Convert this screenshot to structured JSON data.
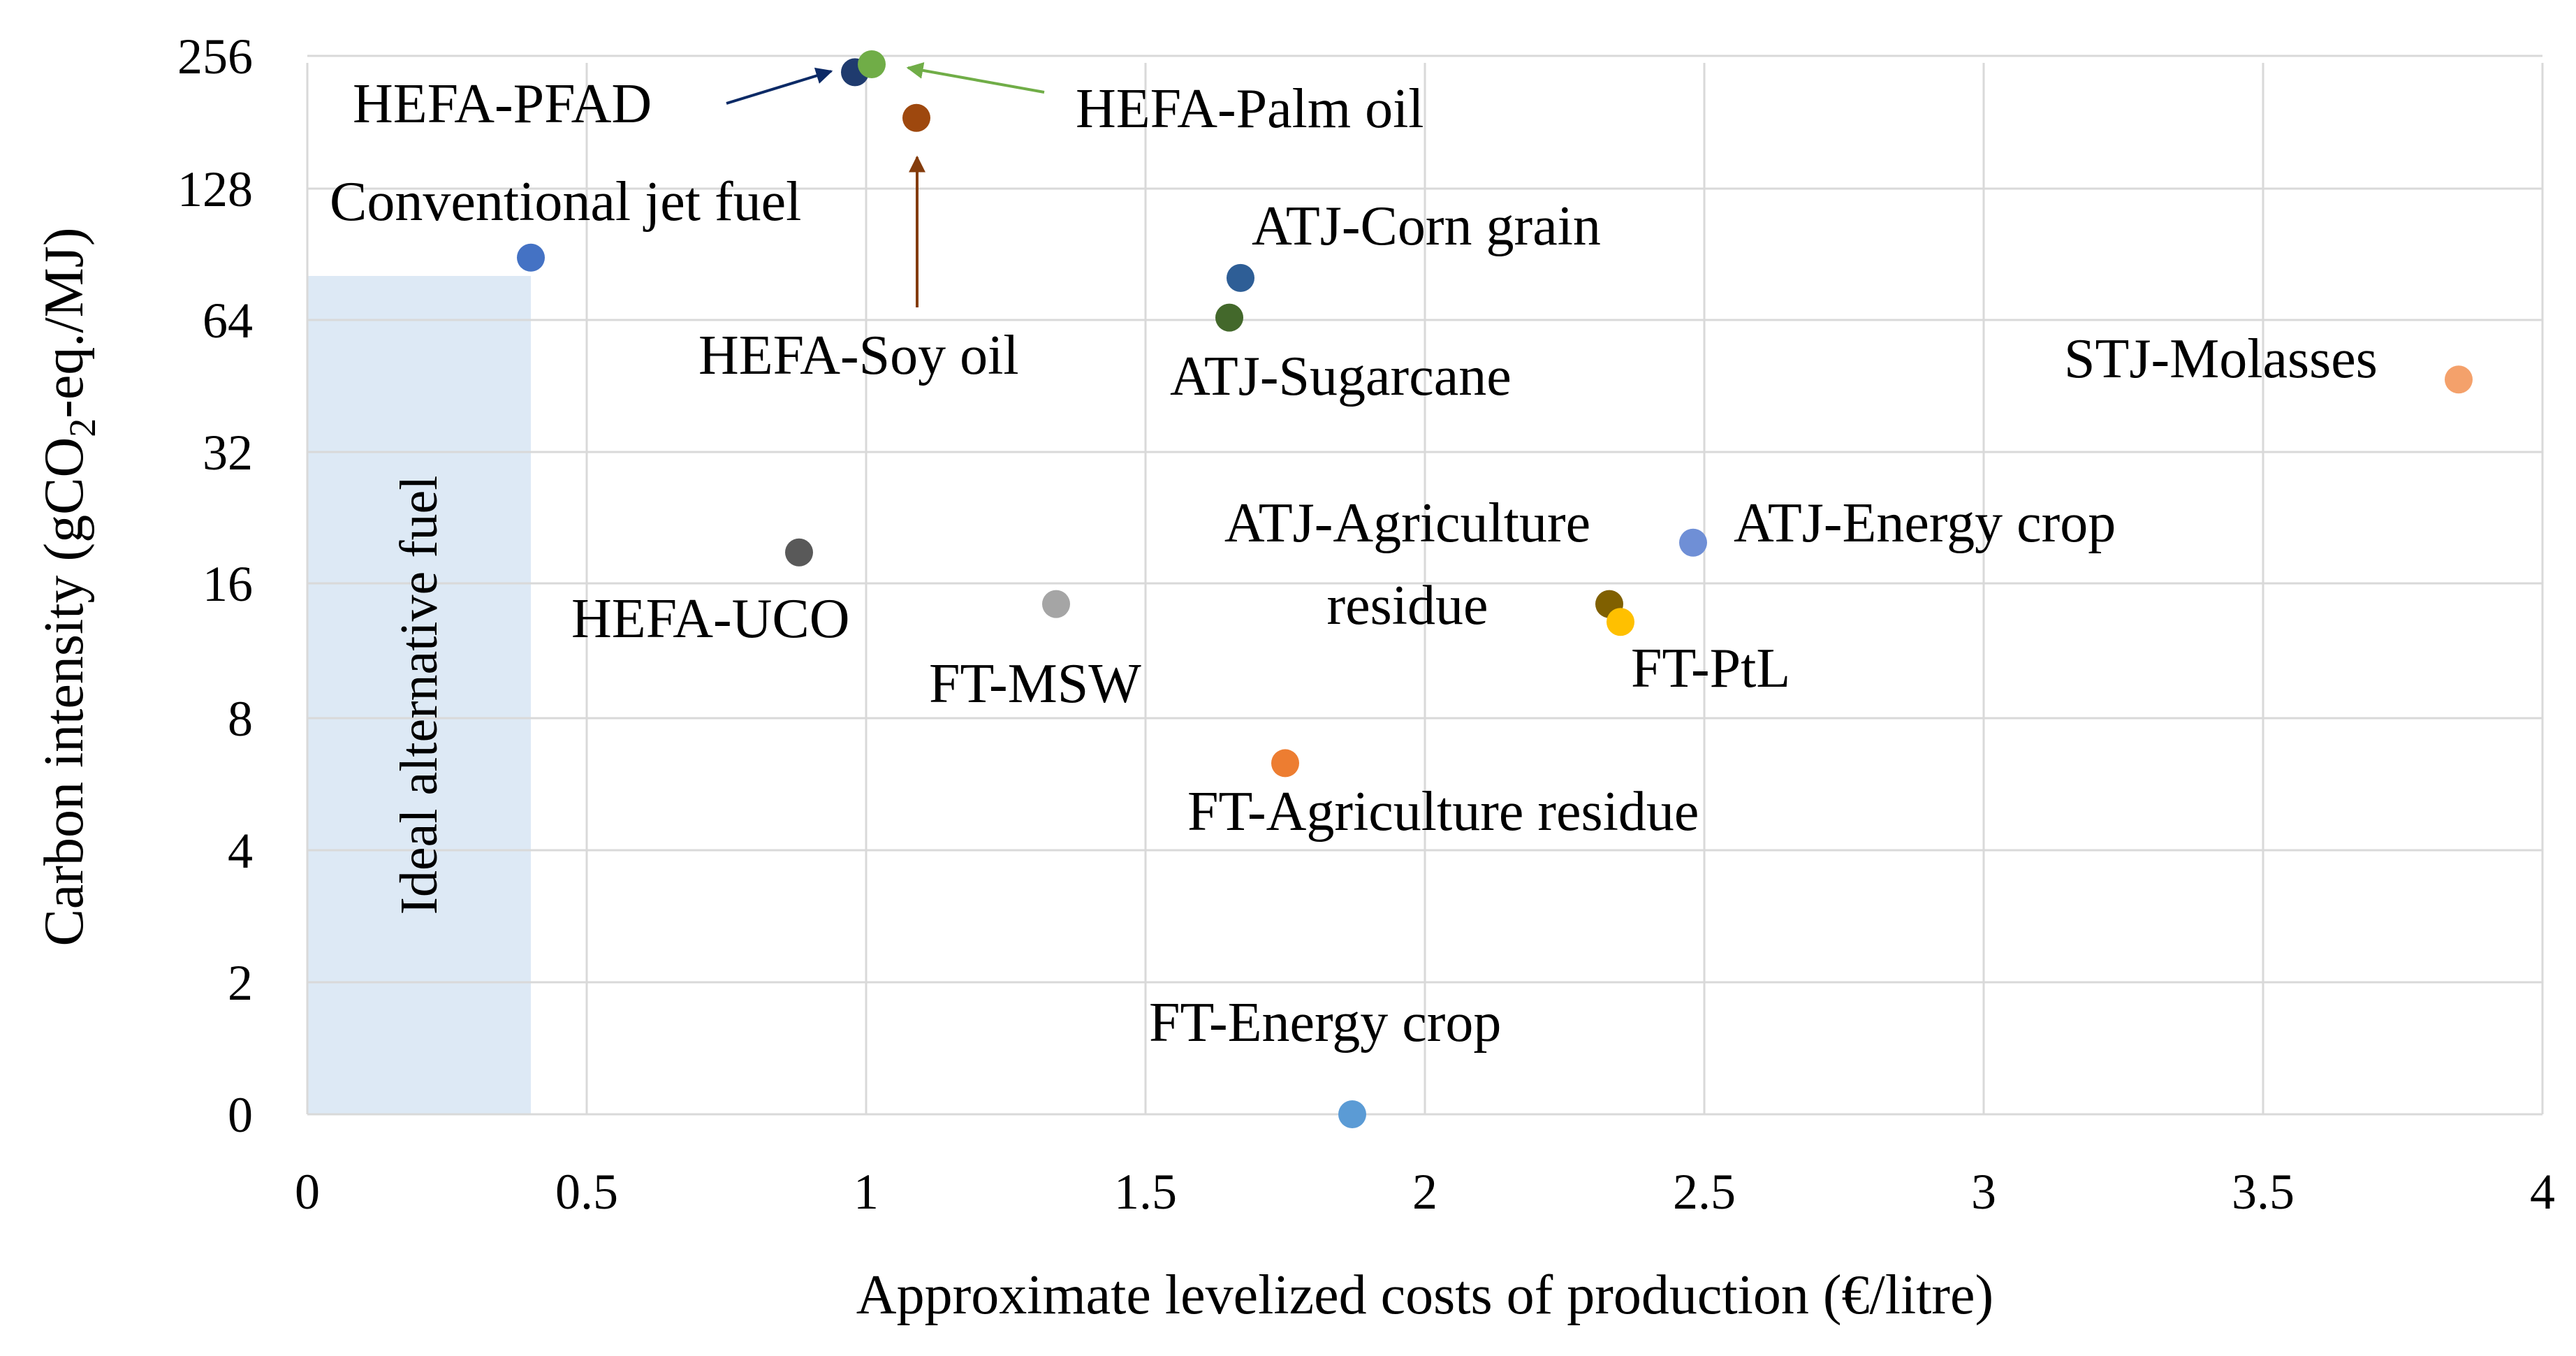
{
  "chart_data": {
    "type": "scatter",
    "title": "",
    "xlabel": "Approximate levelized costs of production (€/litre)",
    "ylabel": {
      "main": "Carbon intensity (gCO",
      "sub": "2",
      "tail": "-eq./MJ)"
    },
    "xlim": [
      0,
      4
    ],
    "y_scale": "log2 with 0 at the bottom tick",
    "ylim": [
      0,
      256
    ],
    "xticks": [
      "0",
      "0.5",
      "1",
      "1.5",
      "2",
      "2.5",
      "3",
      "3.5",
      "4"
    ],
    "yticks": [
      "0",
      "2",
      "4",
      "8",
      "16",
      "32",
      "64",
      "128",
      "256"
    ],
    "grid": true,
    "ideal_region": {
      "label": "Ideal alternative fuel",
      "x_max": 0.4,
      "y_max": 80,
      "color": "#dde9f5"
    },
    "points": [
      {
        "label": "HEFA-PFAD",
        "x": 0.98,
        "y": 235,
        "color": "#1f3b6e",
        "arrow_color": "#0c2a66"
      },
      {
        "label": "HEFA-Palm oil",
        "x": 1.01,
        "y": 245,
        "color": "#70ad47",
        "arrow_color": "#70ad47"
      },
      {
        "label": "HEFA-Soy oil",
        "x": 1.09,
        "y": 185,
        "color": "#9e480e",
        "arrow_color": "#843c0c"
      },
      {
        "label": "Conventional jet fuel",
        "x": 0.4,
        "y": 89,
        "color": "#4472c4"
      },
      {
        "label": "ATJ-Corn grain",
        "x": 1.67,
        "y": 80,
        "color": "#2e5e96"
      },
      {
        "label": "ATJ-Sugarcane",
        "x": 1.65,
        "y": 65,
        "color": "#43682b"
      },
      {
        "label": "STJ-Molasses",
        "x": 3.85,
        "y": 47,
        "color": "#f4a16b"
      },
      {
        "label": "HEFA-UCO",
        "x": 0.88,
        "y": 19,
        "color": "#595959"
      },
      {
        "label": "FT-MSW",
        "x": 1.34,
        "y": 14.5,
        "color": "#a5a5a5"
      },
      {
        "label": "ATJ-Agriculture residue",
        "x": 2.33,
        "y": 14.5,
        "color": "#806000"
      },
      {
        "label": "ATJ-Energy crop",
        "x": 2.48,
        "y": 20,
        "color": "#6f8fd6"
      },
      {
        "label": "FT-PtL",
        "x": 2.35,
        "y": 13.2,
        "color": "#ffc000"
      },
      {
        "label": "FT-Agriculture residue",
        "x": 1.75,
        "y": 6.3,
        "color": "#ed7d31"
      },
      {
        "label": "FT-Energy crop",
        "x": 1.87,
        "y": 0,
        "color": "#5b9bd5",
        "label_color": "#5b9bd5"
      }
    ]
  }
}
